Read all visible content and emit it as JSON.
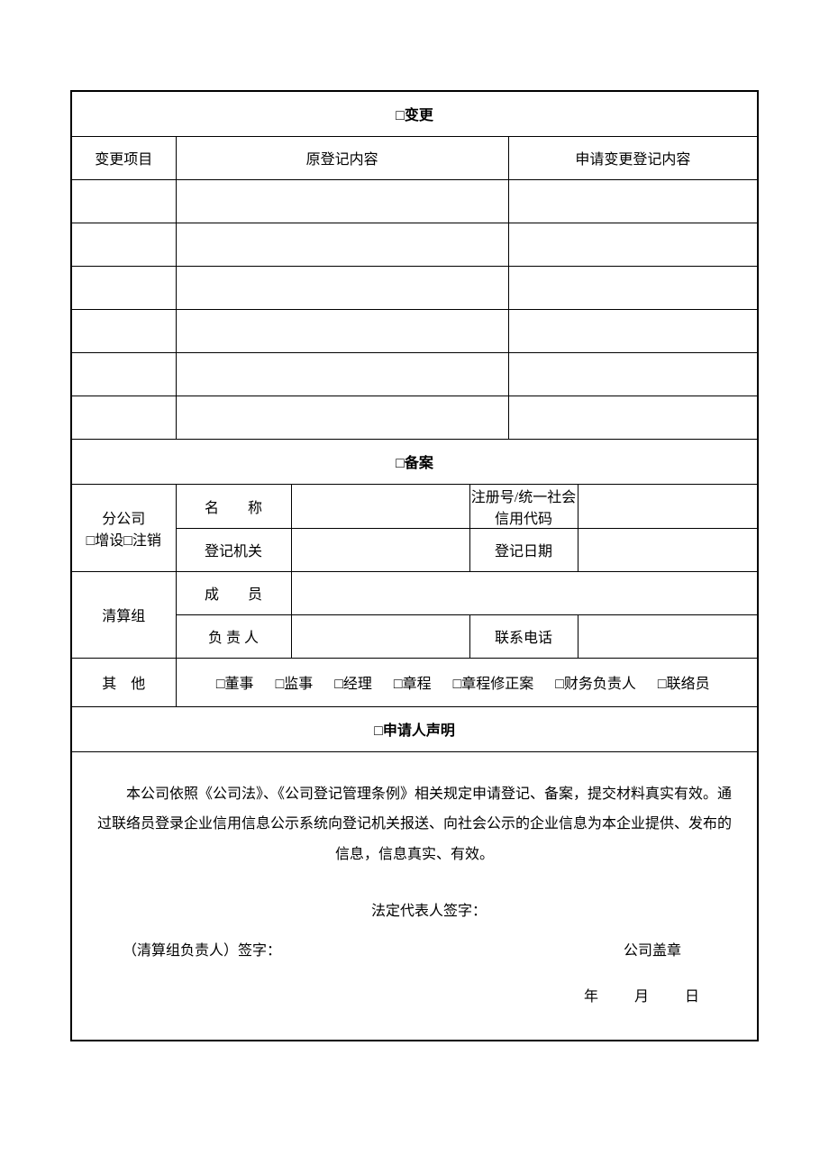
{
  "sections": {
    "change": {
      "title": "□变更",
      "headers": {
        "item": "变更项目",
        "original": "原登记内容",
        "new": "申请变更登记内容"
      },
      "rows": [
        {
          "item": "",
          "original": "",
          "new": ""
        },
        {
          "item": "",
          "original": "",
          "new": ""
        },
        {
          "item": "",
          "original": "",
          "new": ""
        },
        {
          "item": "",
          "original": "",
          "new": ""
        },
        {
          "item": "",
          "original": "",
          "new": ""
        },
        {
          "item": "",
          "original": "",
          "new": ""
        }
      ]
    },
    "filing": {
      "title": "□备案",
      "branch": {
        "label_line1": "分公司",
        "label_line2": "□增设□注销",
        "name_label": "名　　称",
        "name_value": "",
        "reg_no_label": "注册号/统一社会信用代码",
        "reg_no_value": "",
        "reg_org_label": "登记机关",
        "reg_org_value": "",
        "reg_date_label": "登记日期",
        "reg_date_value": ""
      },
      "liquidation": {
        "label": "清算组",
        "members_label": "成　　员",
        "members_value": "",
        "leader_label": "负 责 人",
        "leader_value": "",
        "phone_label": "联系电话",
        "phone_value": ""
      },
      "other": {
        "label": "其　他",
        "options": {
          "director": "□董事",
          "supervisor": "□监事",
          "manager": "□经理",
          "charter": "□章程",
          "amendment": "□章程修正案",
          "finance": "□财务负责人",
          "liaison": "□联络员"
        }
      }
    },
    "declaration": {
      "title": "□申请人声明",
      "body": "本公司依照《公司法》、《公司登记管理条例》相关规定申请登记、备案，提交材料真实有效。通过联络员登录企业信用信息公示系统向登记机关报送、向社会公示的企业信息为本企业提供、发布的信息，信息真实、有效。",
      "legal_rep_sig": "法定代表人签字：",
      "liquidation_sig": "（清算组负责人）签字：",
      "company_seal": "公司盖章",
      "date_year": "年",
      "date_month": "月",
      "date_day": "日"
    }
  },
  "styling": {
    "border_color": "#000000",
    "background_color": "#ffffff",
    "text_color": "#000000",
    "border_width_outer": 2,
    "border_width_inner": 1,
    "font_family": "SimSun",
    "base_font_size": 16,
    "header_font_size": 18
  }
}
